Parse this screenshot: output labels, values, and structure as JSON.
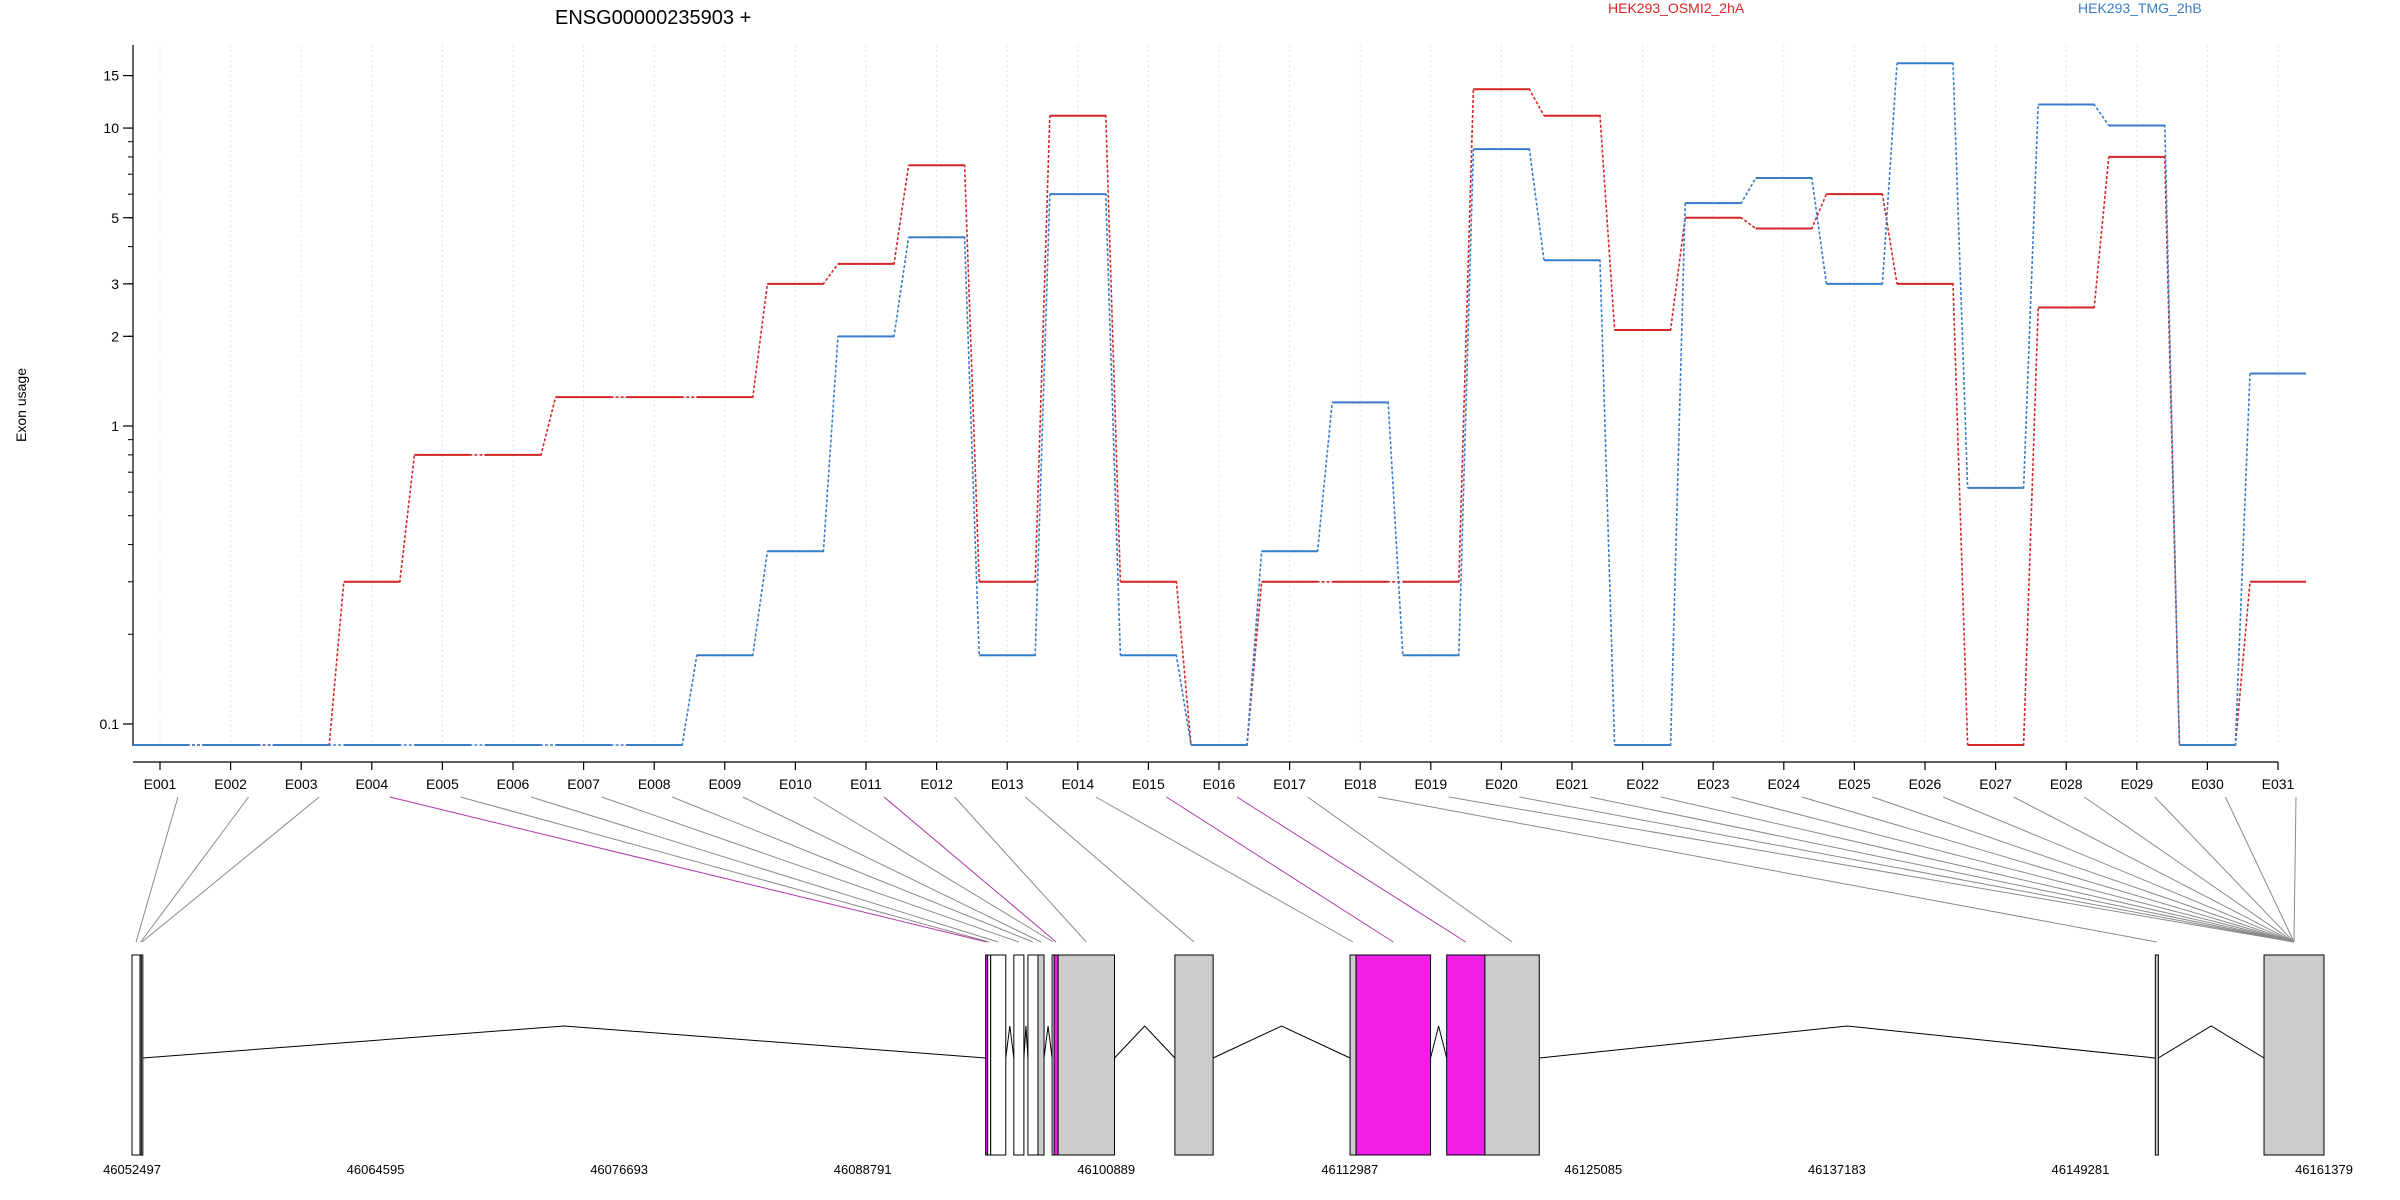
{
  "chart_data": {
    "type": "line",
    "title": "ENSG00000235903 +",
    "ylabel": "Exon usage",
    "xlabel": "",
    "y_scale": "log",
    "ylim": [
      0.085,
      19
    ],
    "y_ticks": [
      "0.1",
      "1",
      "2",
      "3",
      "5",
      "10",
      "15"
    ],
    "categories": [
      "E001",
      "E002",
      "E003",
      "E004",
      "E005",
      "E006",
      "E007",
      "E008",
      "E009",
      "E010",
      "E011",
      "E012",
      "E013",
      "E014",
      "E015",
      "E016",
      "E017",
      "E018",
      "E019",
      "E020",
      "E021",
      "E022",
      "E023",
      "E024",
      "E025",
      "E026",
      "E027",
      "E028",
      "E029",
      "E030",
      "E031"
    ],
    "series": [
      {
        "name": "HEK293_OSMI2_2hA",
        "color": "#d62728",
        "values": [
          0.085,
          0.085,
          0.085,
          0.3,
          0.8,
          0.8,
          1.25,
          1.25,
          1.25,
          3,
          3.5,
          7.5,
          0.3,
          11,
          0.3,
          0.085,
          0.3,
          0.3,
          0.3,
          13.5,
          11,
          2.1,
          5,
          4.6,
          6,
          3,
          0.085,
          2.5,
          8,
          0.085,
          0.3
        ]
      },
      {
        "name": "HEK293_TMG_2hB",
        "color": "#3a7dc9",
        "values": [
          0.085,
          0.085,
          0.085,
          0.085,
          0.085,
          0.085,
          0.085,
          0.085,
          0.17,
          0.38,
          2,
          4.3,
          0.17,
          6,
          0.17,
          0.085,
          0.38,
          1.2,
          0.17,
          8.5,
          3.6,
          0.085,
          5.6,
          6.8,
          3,
          16.5,
          0.62,
          12,
          10.2,
          0.085,
          1.5
        ]
      }
    ],
    "legend_placement": "top",
    "grid": "vertical dotted"
  },
  "gene_model": {
    "coordinates": [
      "46052497",
      "46064595",
      "46076693",
      "46088791",
      "46100889",
      "46112987",
      "46125085",
      "46137183",
      "46149281",
      "46161379"
    ],
    "coord_start": 46052497,
    "coord_end": 46161379,
    "highlight_color": "#f01ee6",
    "exon_color": "#cccccc",
    "exons": [
      {
        "id": "E001",
        "start": 46052497,
        "end": 46052897,
        "fill": "white"
      },
      {
        "id": "E002",
        "start": 46052900,
        "end": 46052960,
        "fill": "white"
      },
      {
        "id": "E003",
        "start": 46052960,
        "end": 46053020,
        "fill": "white"
      },
      {
        "id": "E004",
        "start": 46094900,
        "end": 46095000,
        "fill": "magenta"
      },
      {
        "id": "E005",
        "start": 46095000,
        "end": 46095150,
        "fill": "white"
      },
      {
        "id": "E006",
        "start": 46095150,
        "end": 46095900,
        "fill": "white"
      },
      {
        "id": "E007",
        "start": 46096300,
        "end": 46096800,
        "fill": "white"
      },
      {
        "id": "E008",
        "start": 46097000,
        "end": 46097500,
        "fill": "white"
      },
      {
        "id": "E009",
        "start": 46097500,
        "end": 46097800,
        "fill": "grey"
      },
      {
        "id": "E010",
        "start": 46098200,
        "end": 46098300,
        "fill": "white"
      },
      {
        "id": "E011",
        "start": 46098300,
        "end": 46098500,
        "fill": "magenta"
      },
      {
        "id": "E012",
        "start": 46098500,
        "end": 46101300,
        "fill": "grey"
      },
      {
        "id": "E013",
        "start": 46104300,
        "end": 46106200,
        "fill": "grey"
      },
      {
        "id": "E014",
        "start": 46113000,
        "end": 46113300,
        "fill": "grey"
      },
      {
        "id": "E015",
        "start": 46113300,
        "end": 46117000,
        "fill": "magenta"
      },
      {
        "id": "E016",
        "start": 46117800,
        "end": 46119700,
        "fill": "magenta"
      },
      {
        "id": "E017",
        "start": 46119700,
        "end": 46122400,
        "fill": "grey"
      },
      {
        "id": "E018",
        "start": 46153000,
        "end": 46153150,
        "fill": "grey"
      },
      {
        "id": "E019",
        "start": 46158400,
        "end": 46161379,
        "fill": "grey"
      }
    ]
  }
}
